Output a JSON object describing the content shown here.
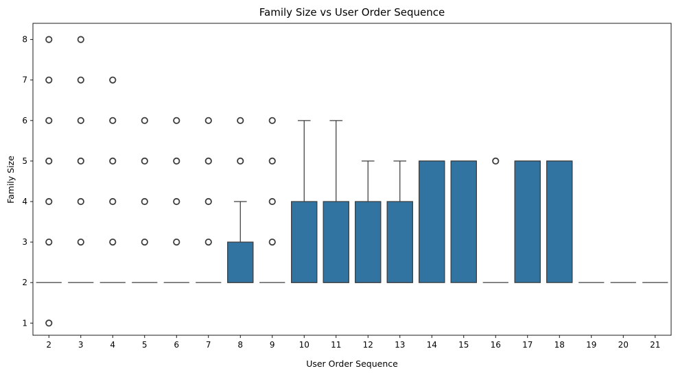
{
  "chart_data": {
    "type": "box",
    "title": "Family Size vs User Order Sequence",
    "xlabel": "User Order Sequence",
    "ylabel": "Family Size",
    "ylim": [
      0.7,
      8.4
    ],
    "yticks": [
      1,
      2,
      3,
      4,
      5,
      6,
      7,
      8
    ],
    "categories": [
      "2",
      "3",
      "4",
      "5",
      "6",
      "7",
      "8",
      "9",
      "10",
      "11",
      "12",
      "13",
      "14",
      "15",
      "16",
      "17",
      "18",
      "19",
      "20",
      "21"
    ],
    "box_color": "#3274a1",
    "edge_color": "#3d3d3d",
    "grid": false,
    "legend": "none",
    "boxes": [
      {
        "category": "2",
        "q1": 2,
        "median": 2,
        "q3": 2,
        "whisker_low": 2,
        "whisker_high": 2,
        "fliers": [
          1,
          3,
          4,
          5,
          6,
          7,
          8
        ]
      },
      {
        "category": "3",
        "q1": 2,
        "median": 2,
        "q3": 2,
        "whisker_low": 2,
        "whisker_high": 2,
        "fliers": [
          3,
          4,
          5,
          6,
          7,
          8
        ]
      },
      {
        "category": "4",
        "q1": 2,
        "median": 2,
        "q3": 2,
        "whisker_low": 2,
        "whisker_high": 2,
        "fliers": [
          3,
          4,
          5,
          6,
          7
        ]
      },
      {
        "category": "5",
        "q1": 2,
        "median": 2,
        "q3": 2,
        "whisker_low": 2,
        "whisker_high": 2,
        "fliers": [
          3,
          4,
          5,
          6
        ]
      },
      {
        "category": "6",
        "q1": 2,
        "median": 2,
        "q3": 2,
        "whisker_low": 2,
        "whisker_high": 2,
        "fliers": [
          3,
          4,
          5,
          6
        ]
      },
      {
        "category": "7",
        "q1": 2,
        "median": 2,
        "q3": 2,
        "whisker_low": 2,
        "whisker_high": 2,
        "fliers": [
          3,
          4,
          5,
          6
        ]
      },
      {
        "category": "8",
        "q1": 2,
        "median": 2,
        "q3": 3,
        "whisker_low": 2,
        "whisker_high": 4,
        "fliers": [
          5,
          6
        ]
      },
      {
        "category": "9",
        "q1": 2,
        "median": 2,
        "q3": 2,
        "whisker_low": 2,
        "whisker_high": 2,
        "fliers": [
          3,
          4,
          5,
          6
        ]
      },
      {
        "category": "10",
        "q1": 2,
        "median": 2,
        "q3": 4,
        "whisker_low": 2,
        "whisker_high": 6,
        "fliers": []
      },
      {
        "category": "11",
        "q1": 2,
        "median": 2,
        "q3": 4,
        "whisker_low": 2,
        "whisker_high": 6,
        "fliers": []
      },
      {
        "category": "12",
        "q1": 2,
        "median": 2,
        "q3": 4,
        "whisker_low": 2,
        "whisker_high": 5,
        "fliers": []
      },
      {
        "category": "13",
        "q1": 2,
        "median": 2,
        "q3": 4,
        "whisker_low": 2,
        "whisker_high": 5,
        "fliers": []
      },
      {
        "category": "14",
        "q1": 2,
        "median": 5,
        "q3": 5,
        "whisker_low": 2,
        "whisker_high": 5,
        "fliers": []
      },
      {
        "category": "15",
        "q1": 2,
        "median": 5,
        "q3": 5,
        "whisker_low": 2,
        "whisker_high": 5,
        "fliers": []
      },
      {
        "category": "16",
        "q1": 2,
        "median": 2,
        "q3": 2,
        "whisker_low": 2,
        "whisker_high": 2,
        "fliers": [
          5
        ]
      },
      {
        "category": "17",
        "q1": 2,
        "median": 5,
        "q3": 5,
        "whisker_low": 2,
        "whisker_high": 5,
        "fliers": []
      },
      {
        "category": "18",
        "q1": 2,
        "median": 5,
        "q3": 5,
        "whisker_low": 2,
        "whisker_high": 5,
        "fliers": []
      },
      {
        "category": "19",
        "q1": 2,
        "median": 2,
        "q3": 2,
        "whisker_low": 2,
        "whisker_high": 2,
        "fliers": []
      },
      {
        "category": "20",
        "q1": 2,
        "median": 2,
        "q3": 2,
        "whisker_low": 2,
        "whisker_high": 2,
        "fliers": []
      },
      {
        "category": "21",
        "q1": 2,
        "median": 2,
        "q3": 2,
        "whisker_low": 2,
        "whisker_high": 2,
        "fliers": []
      }
    ]
  }
}
